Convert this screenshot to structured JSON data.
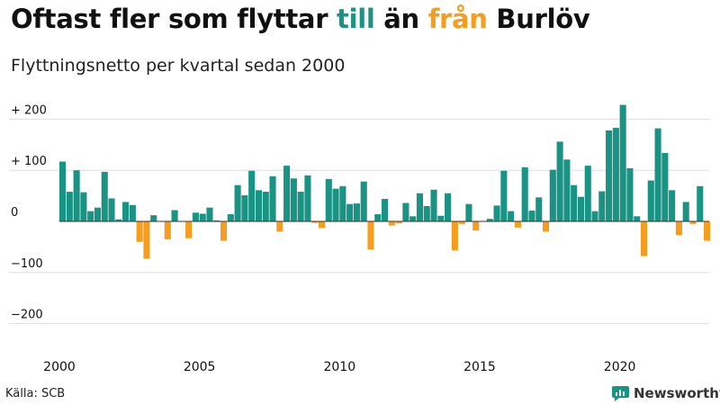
{
  "title": {
    "part1": "Oftast fler som flyttar ",
    "part2": "till",
    "part3": " än ",
    "part4": "från",
    "part5": " Burlöv"
  },
  "subtitle": "Flyttningsnetto per kvartal sedan 2000",
  "source": "Källa: SCB",
  "brand": "Newsworthy",
  "colors": {
    "positive": "#1a9384",
    "negative": "#f59d1f",
    "grid": "#dddddd",
    "text": "#111111"
  },
  "chart_data": {
    "type": "bar",
    "title": "Oftast fler som flyttar till än från Burlöv",
    "subtitle": "Flyttningsnetto per kvartal sedan 2000",
    "xlabel": "",
    "ylabel": "",
    "ylim": [
      -220,
      230
    ],
    "yticks": [
      {
        "value": 200,
        "label": "+ 200"
      },
      {
        "value": 100,
        "label": "+ 100"
      },
      {
        "value": 0,
        "label": "0"
      },
      {
        "value": -100,
        "label": "−100"
      },
      {
        "value": -200,
        "label": "−200"
      }
    ],
    "xticks": [
      {
        "index": 0,
        "label": "2000"
      },
      {
        "index": 20,
        "label": "2005"
      },
      {
        "index": 40,
        "label": "2010"
      },
      {
        "index": 60,
        "label": "2015"
      },
      {
        "index": 80,
        "label": "2020"
      }
    ],
    "start": "2000 Q1",
    "values": [
      117,
      58,
      100,
      57,
      20,
      27,
      97,
      45,
      4,
      38,
      32,
      -40,
      -73,
      12,
      0,
      -35,
      22,
      0,
      -33,
      17,
      15,
      27,
      2,
      -38,
      14,
      71,
      51,
      99,
      61,
      58,
      88,
      -20,
      109,
      84,
      58,
      90,
      -3,
      -13,
      83,
      64,
      69,
      34,
      35,
      78,
      -55,
      14,
      44,
      -8,
      -4,
      36,
      10,
      55,
      30,
      62,
      11,
      55,
      -57,
      -5,
      34,
      -18,
      0,
      5,
      31,
      99,
      20,
      -12,
      106,
      21,
      47,
      -20,
      101,
      156,
      121,
      71,
      48,
      109,
      20,
      59,
      178,
      183,
      228,
      104,
      10,
      -68,
      80,
      182,
      134,
      61,
      -27,
      38,
      -5,
      69,
      -38
    ]
  }
}
